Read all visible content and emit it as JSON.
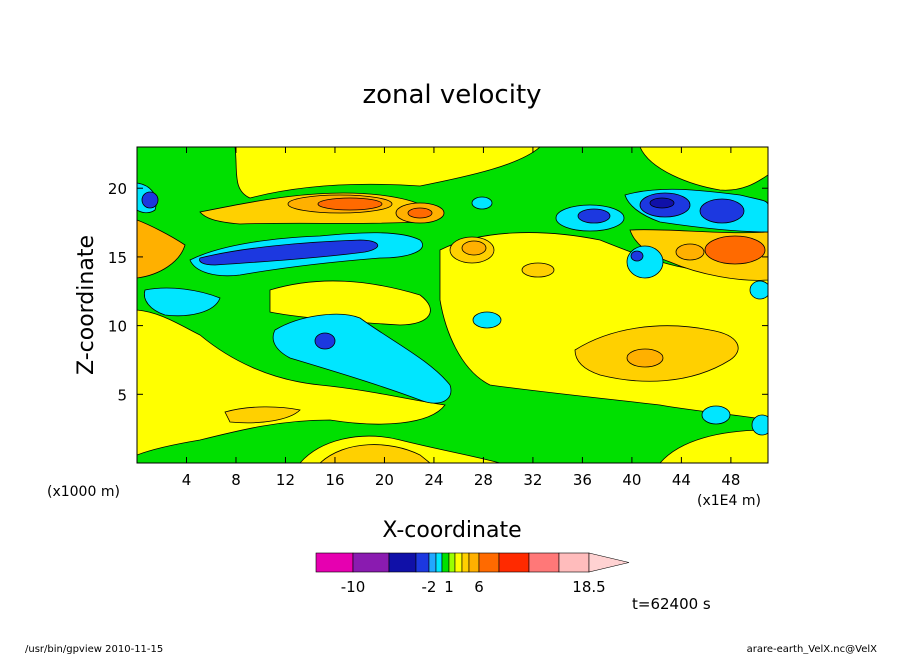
{
  "chart_data": {
    "type": "heatmap",
    "title": "zonal velocity",
    "xlabel": "X-coordinate",
    "ylabel": "Z-coordinate",
    "x_unit": "(x1E4 m)",
    "y_unit": "(x1000 m)",
    "x_ticks": [
      4,
      8,
      12,
      16,
      20,
      24,
      28,
      32,
      36,
      40,
      44,
      48
    ],
    "y_ticks": [
      5,
      10,
      15,
      20
    ],
    "xlim": [
      0,
      51
    ],
    "ylim": [
      0,
      23
    ],
    "colorbar": {
      "tick_labels": [
        "-10",
        "-2",
        "1",
        "6",
        "18.5"
      ],
      "tick_values": [
        -10,
        -2,
        1,
        6,
        18.5
      ],
      "levels": [
        -14,
        -10,
        -6,
        -3,
        -2,
        -1,
        0,
        1,
        2,
        3,
        4,
        6,
        9,
        12,
        15,
        18.5
      ],
      "colors": [
        "#e600b0",
        "#8a1bb0",
        "#1010a8",
        "#1c38e0",
        "#22a8ff",
        "#00e6ff",
        "#00e000",
        "#9aff00",
        "#ffff00",
        "#ffd000",
        "#ffb000",
        "#ff6a00",
        "#ff2a00",
        "#ff7878",
        "#ffbcbc"
      ],
      "extend": "max"
    },
    "legend": "bottom"
  },
  "annotations": {
    "time": "t=62400 s",
    "footer_left": "/usr/bin/gpview   2010-11-15",
    "footer_right": "arare-earth_VelX.nc@VelX"
  }
}
